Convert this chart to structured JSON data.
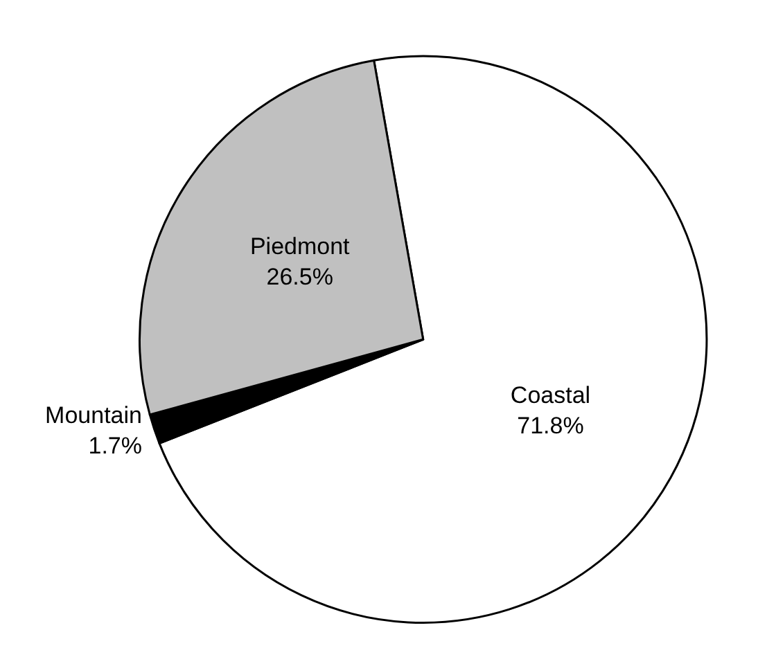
{
  "chart_data": {
    "type": "pie",
    "categories": [
      "Coastal",
      "Mountain",
      "Piedmont"
    ],
    "values": [
      71.8,
      1.7,
      26.5
    ],
    "value_labels": [
      "71.8%",
      "1.7%",
      "26.5%"
    ],
    "colors": [
      "#ffffff",
      "#000000",
      "#c0c0c0"
    ],
    "legend": false
  }
}
